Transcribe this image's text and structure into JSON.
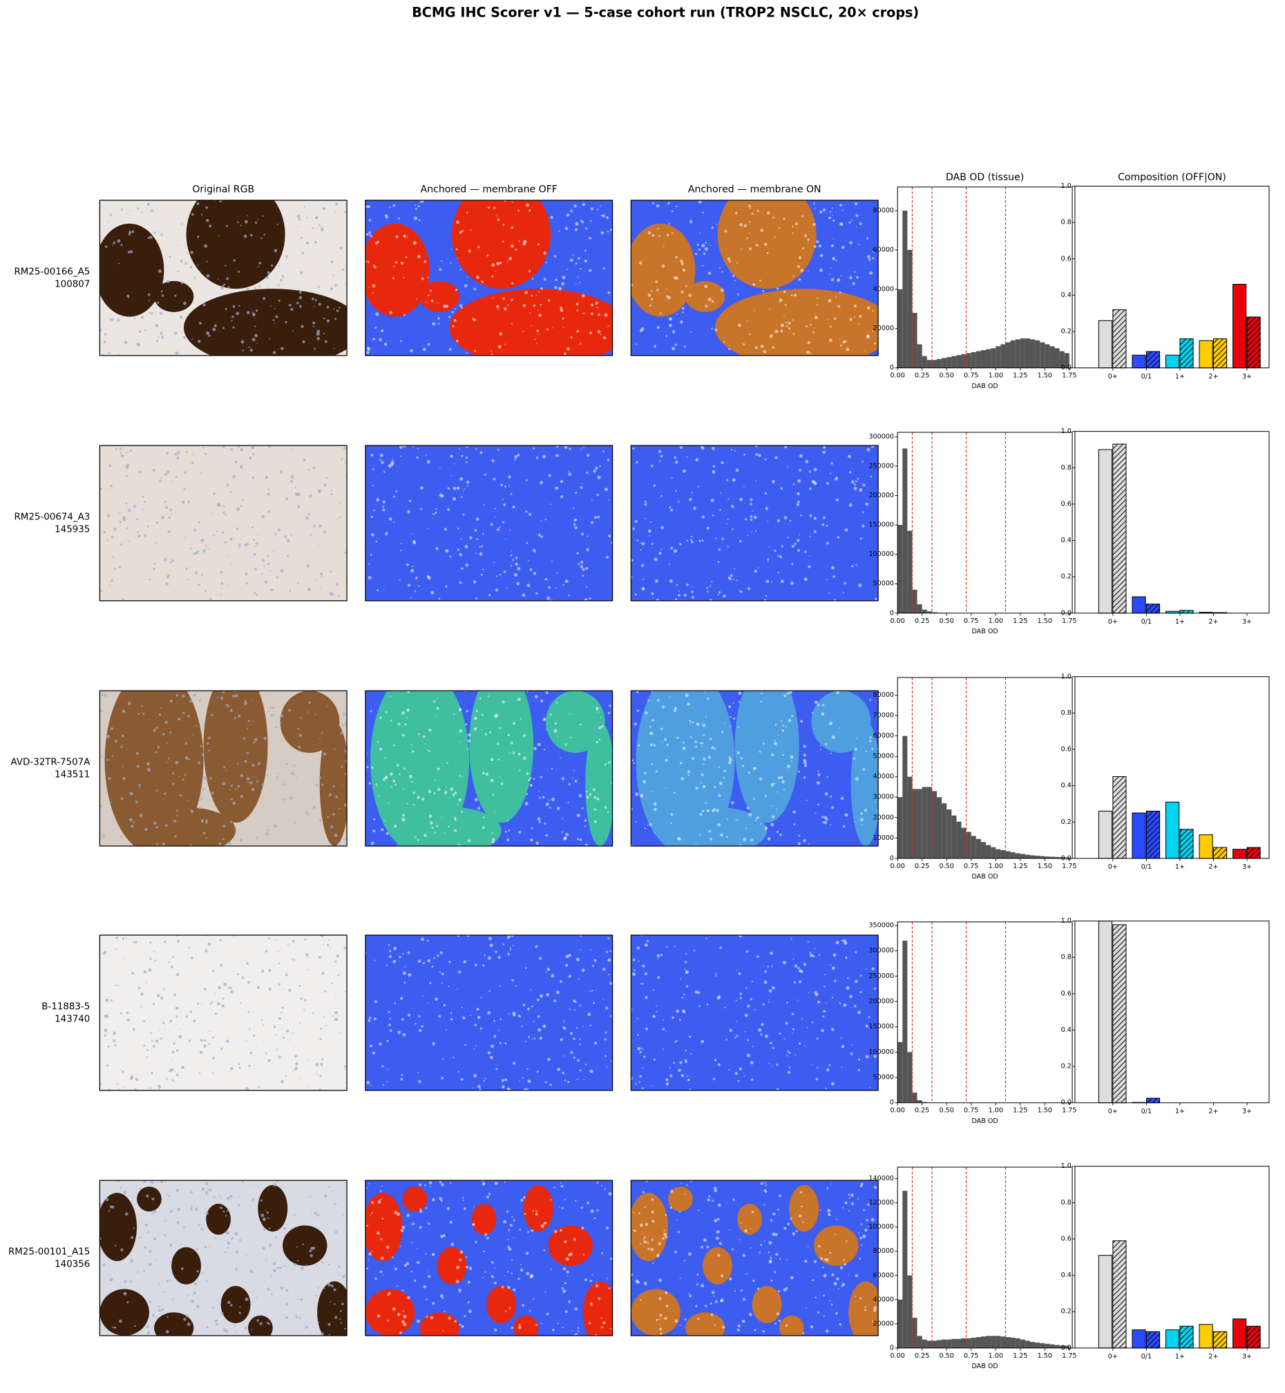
{
  "title": "BCMG IHC Scorer v1 — 5-case cohort run (TROP2 NSCLC, 20× crops)",
  "column_headers": [
    "Original RGB",
    "Anchored — membrane OFF",
    "Anchored — membrane ON"
  ],
  "cases": [
    {
      "name": "RM25-00166_A5",
      "id": "100807"
    },
    {
      "name": "RM25-00674_A3",
      "id": "145935"
    },
    {
      "name": "AVD-32TR-7507A",
      "id": "143511"
    },
    {
      "name": "B-11883-5",
      "id": "143740"
    },
    {
      "name": "RM25-00101_A15",
      "id": "140356"
    }
  ],
  "chart_data": [
    {
      "type": "histogram",
      "title": "DAB OD (tissue)",
      "x_label": "DAB OD",
      "color": "#555555",
      "bins": [
        0,
        0.05,
        0.1,
        0.15,
        0.2,
        0.25,
        0.3,
        0.35,
        0.4,
        0.45,
        0.5,
        0.55,
        0.6,
        0.65,
        0.7,
        0.75,
        0.8,
        0.85,
        0.9,
        0.95,
        1.0,
        1.05,
        1.1,
        1.15,
        1.2,
        1.25,
        1.3,
        1.35,
        1.4,
        1.45,
        1.5,
        1.55,
        1.6,
        1.65,
        1.7,
        1.75
      ],
      "values": [
        40000,
        80000,
        60000,
        28000,
        12000,
        6000,
        4000,
        4000,
        4500,
        5000,
        5500,
        6000,
        6500,
        7000,
        7500,
        8000,
        8500,
        9000,
        9500,
        10000,
        11000,
        12000,
        13000,
        14000,
        14500,
        15000,
        15000,
        14500,
        14000,
        13000,
        12000,
        11000,
        10000,
        8500,
        7500
      ],
      "thresholds": [
        0.15,
        0.35,
        0.7,
        1.1
      ],
      "threshold_color": "#d62728",
      "xlim": [
        0,
        1.78
      ],
      "xticks": [
        {
          "value": 0,
          "label": "0.00"
        },
        0.25,
        {
          "value": 0.5,
          "label": "0.50"
        },
        0.75,
        {
          "value": 1,
          "label": "1.00"
        },
        1.25,
        {
          "value": 1.5,
          "label": "1.50"
        },
        1.75
      ],
      "ylim": [
        0,
        92000
      ],
      "yticks": [
        0,
        20000,
        40000,
        60000,
        80000
      ]
    },
    {
      "type": "grouped-bar",
      "title": "Composition (OFF|ON)",
      "categories": [
        "0+",
        "0/1",
        "1+",
        "2+",
        "3+"
      ],
      "colors": [
        "#dddddd",
        "#2a4bff",
        "#00d4f0",
        "#ffcc00",
        "#e8000b"
      ],
      "edgecolor": "#000000",
      "series": [
        {
          "values": [
            0.26,
            0.07,
            0.07,
            0.15,
            0.46
          ]
        },
        {
          "values": [
            0.32,
            0.09,
            0.16,
            0.16,
            0.28
          ],
          "hatch": true
        }
      ],
      "ylim": [
        0,
        1
      ],
      "yticks": [
        {
          "value": 0,
          "label": "0.0"
        },
        0.2,
        0.4,
        0.6,
        0.8,
        {
          "value": 1,
          "label": "1.0"
        }
      ]
    },
    {
      "type": "histogram",
      "x_label": "DAB OD",
      "color": "#555555",
      "bins": [
        0,
        0.05,
        0.1,
        0.15,
        0.2,
        0.25,
        0.3,
        0.35,
        0.4,
        0.45,
        0.5,
        0.55,
        0.6,
        0.65,
        0.7,
        0.75,
        0.8,
        0.85,
        0.9,
        0.95,
        1.0,
        1.05,
        1.1,
        1.15,
        1.2,
        1.25,
        1.3,
        1.35,
        1.4,
        1.45,
        1.5,
        1.55,
        1.6,
        1.65,
        1.7,
        1.75
      ],
      "values": [
        150000,
        280000,
        140000,
        40000,
        15000,
        6000,
        3000,
        1500,
        800,
        500,
        300,
        200,
        150,
        100,
        80,
        60,
        50,
        40,
        30,
        20,
        20,
        10,
        10,
        10,
        10,
        5,
        5,
        5,
        5,
        0,
        0,
        0,
        0,
        0,
        0
      ],
      "thresholds": [
        0.15,
        0.35,
        0.7,
        1.1
      ],
      "threshold_color": "#d62728",
      "xlim": [
        0,
        1.78
      ],
      "xticks": [
        {
          "value": 0,
          "label": "0.00"
        },
        0.25,
        {
          "value": 0.5,
          "label": "0.50"
        },
        0.75,
        {
          "value": 1,
          "label": "1.00"
        },
        1.25,
        {
          "value": 1.5,
          "label": "1.50"
        },
        1.75
      ],
      "ylim": [
        0,
        307500
      ],
      "yticks": [
        0,
        50000,
        100000,
        150000,
        200000,
        250000,
        300000
      ]
    },
    {
      "type": "grouped-bar",
      "categories": [
        "0+",
        "0/1",
        "1+",
        "2+",
        "3+"
      ],
      "colors": [
        "#dddddd",
        "#2a4bff",
        "#00d4f0",
        "#ffcc00",
        "#e8000b"
      ],
      "edgecolor": "#000000",
      "series": [
        {
          "values": [
            0.9,
            0.09,
            0.01,
            0.005,
            0
          ]
        },
        {
          "values": [
            0.93,
            0.05,
            0.015,
            0.003,
            0
          ],
          "hatch": true
        }
      ],
      "ylim": [
        0,
        1
      ],
      "yticks": [
        {
          "value": 0,
          "label": "0.0"
        },
        0.2,
        0.4,
        0.6,
        0.8,
        {
          "value": 1,
          "label": "1.0"
        }
      ]
    },
    {
      "type": "histogram",
      "x_label": "DAB OD",
      "color": "#555555",
      "bins": [
        0,
        0.05,
        0.1,
        0.15,
        0.2,
        0.25,
        0.3,
        0.35,
        0.4,
        0.45,
        0.5,
        0.55,
        0.6,
        0.65,
        0.7,
        0.75,
        0.8,
        0.85,
        0.9,
        0.95,
        1.0,
        1.05,
        1.1,
        1.15,
        1.2,
        1.25,
        1.3,
        1.35,
        1.4,
        1.45,
        1.5,
        1.55,
        1.6,
        1.65,
        1.7,
        1.75
      ],
      "values": [
        30000,
        60000,
        40000,
        34000,
        34000,
        35000,
        35000,
        33000,
        30000,
        27000,
        24000,
        21000,
        18000,
        15000,
        13000,
        11000,
        9500,
        8000,
        6500,
        5500,
        4500,
        4000,
        3500,
        3000,
        2500,
        2200,
        1800,
        1500,
        1300,
        1100,
        900,
        800,
        700,
        600,
        500
      ],
      "thresholds": [
        0.15,
        0.35,
        0.7,
        1.1
      ],
      "threshold_color": "#d62728",
      "xlim": [
        0,
        1.78
      ],
      "xticks": [
        {
          "value": 0,
          "label": "0.00"
        },
        0.25,
        {
          "value": 0.5,
          "label": "0.50"
        },
        0.75,
        {
          "value": 1,
          "label": "1.00"
        },
        1.25,
        {
          "value": 1.5,
          "label": "1.50"
        },
        1.75
      ],
      "ylim": [
        0,
        88600
      ],
      "yticks": [
        0,
        10000,
        20000,
        30000,
        40000,
        50000,
        60000,
        70000,
        80000
      ]
    },
    {
      "type": "grouped-bar",
      "categories": [
        "0+",
        "0/1",
        "1+",
        "2+",
        "3+"
      ],
      "colors": [
        "#dddddd",
        "#2a4bff",
        "#00d4f0",
        "#ffcc00",
        "#e8000b"
      ],
      "edgecolor": "#000000",
      "series": [
        {
          "values": [
            0.26,
            0.25,
            0.31,
            0.13,
            0.05
          ]
        },
        {
          "values": [
            0.45,
            0.26,
            0.16,
            0.06,
            0.06
          ],
          "hatch": true
        }
      ],
      "ylim": [
        0,
        1
      ],
      "yticks": [
        {
          "value": 0,
          "label": "0.0"
        },
        0.2,
        0.4,
        0.6,
        0.8,
        {
          "value": 1,
          "label": "1.0"
        }
      ]
    },
    {
      "type": "histogram",
      "x_label": "DAB OD",
      "color": "#555555",
      "bins": [
        0,
        0.05,
        0.1,
        0.15,
        0.2,
        0.25,
        0.3,
        0.35,
        0.4,
        0.45,
        0.5,
        0.55,
        0.6,
        0.65,
        0.7,
        0.75,
        0.8,
        0.85,
        0.9,
        0.95,
        1.0,
        1.05,
        1.1,
        1.15,
        1.2,
        1.25,
        1.3,
        1.35,
        1.4,
        1.45,
        1.5,
        1.55,
        1.6,
        1.65,
        1.7,
        1.75
      ],
      "values": [
        120000,
        320000,
        100000,
        20000,
        5000,
        1500,
        500,
        200,
        100,
        50,
        20,
        10,
        5,
        0,
        0,
        0,
        0,
        0,
        0,
        0,
        0,
        0,
        0,
        0,
        0,
        0,
        0,
        0,
        0,
        0,
        0,
        0,
        0,
        0,
        0
      ],
      "thresholds": [
        0.15,
        0.35,
        0.7,
        1.1
      ],
      "threshold_color": "#d62728",
      "xlim": [
        0,
        1.78
      ],
      "xticks": [
        {
          "value": 0,
          "label": "0.00"
        },
        0.25,
        {
          "value": 0.5,
          "label": "0.50"
        },
        0.75,
        {
          "value": 1,
          "label": "1.00"
        },
        1.25,
        {
          "value": 1.5,
          "label": "1.50"
        },
        1.75
      ],
      "ylim": [
        0,
        357000
      ],
      "yticks": [
        0,
        50000,
        100000,
        150000,
        200000,
        250000,
        300000,
        350000
      ]
    },
    {
      "type": "grouped-bar",
      "categories": [
        "0+",
        "0/1",
        "1+",
        "2+",
        "3+"
      ],
      "colors": [
        "#dddddd",
        "#2a4bff",
        "#00d4f0",
        "#ffcc00",
        "#e8000b"
      ],
      "edgecolor": "#000000",
      "series": [
        {
          "values": [
            1.0,
            0.002,
            0,
            0,
            0
          ]
        },
        {
          "values": [
            0.98,
            0.025,
            0,
            0,
            0
          ],
          "hatch": true
        }
      ],
      "ylim": [
        0,
        1
      ],
      "yticks": [
        {
          "value": 0,
          "label": "0.0"
        },
        0.2,
        0.4,
        0.6,
        0.8,
        {
          "value": 1,
          "label": "1.0"
        }
      ]
    },
    {
      "type": "histogram",
      "x_label": "DAB OD",
      "color": "#555555",
      "bins": [
        0,
        0.05,
        0.1,
        0.15,
        0.2,
        0.25,
        0.3,
        0.35,
        0.4,
        0.45,
        0.5,
        0.55,
        0.6,
        0.65,
        0.7,
        0.75,
        0.8,
        0.85,
        0.9,
        0.95,
        1.0,
        1.05,
        1.1,
        1.15,
        1.2,
        1.25,
        1.3,
        1.35,
        1.4,
        1.45,
        1.5,
        1.55,
        1.6,
        1.65,
        1.7,
        1.75
      ],
      "values": [
        40000,
        130000,
        60000,
        25000,
        10000,
        7000,
        6000,
        6000,
        6500,
        7000,
        7000,
        7500,
        7500,
        8000,
        8000,
        8500,
        9000,
        9500,
        10000,
        10000,
        10000,
        9500,
        9000,
        8500,
        8000,
        7000,
        6000,
        5000,
        4500,
        4000,
        3500,
        3000,
        2500,
        2000,
        2000
      ],
      "thresholds": [
        0.15,
        0.35,
        0.7,
        1.1
      ],
      "threshold_color": "#d62728",
      "xlim": [
        0,
        1.78
      ],
      "xticks": [
        {
          "value": 0,
          "label": "0.00"
        },
        0.25,
        {
          "value": 0.5,
          "label": "0.50"
        },
        0.75,
        {
          "value": 1,
          "label": "1.00"
        },
        1.25,
        {
          "value": 1.5,
          "label": "1.50"
        },
        1.75
      ],
      "ylim": [
        0,
        149500
      ],
      "yticks": [
        0,
        20000,
        40000,
        60000,
        80000,
        100000,
        120000,
        140000
      ]
    },
    {
      "type": "grouped-bar",
      "categories": [
        "0+",
        "0/1",
        "1+",
        "2+",
        "3+"
      ],
      "colors": [
        "#dddddd",
        "#2a4bff",
        "#00d4f0",
        "#ffcc00",
        "#e8000b"
      ],
      "edgecolor": "#000000",
      "series": [
        {
          "values": [
            0.51,
            0.1,
            0.1,
            0.13,
            0.16
          ]
        },
        {
          "values": [
            0.59,
            0.09,
            0.12,
            0.09,
            0.12
          ],
          "hatch": true
        }
      ],
      "ylim": [
        0,
        1
      ],
      "yticks": [
        {
          "value": 0,
          "label": "0.0"
        },
        0.2,
        0.4,
        0.6,
        0.8,
        {
          "value": 1,
          "label": "1.0"
        }
      ]
    }
  ]
}
